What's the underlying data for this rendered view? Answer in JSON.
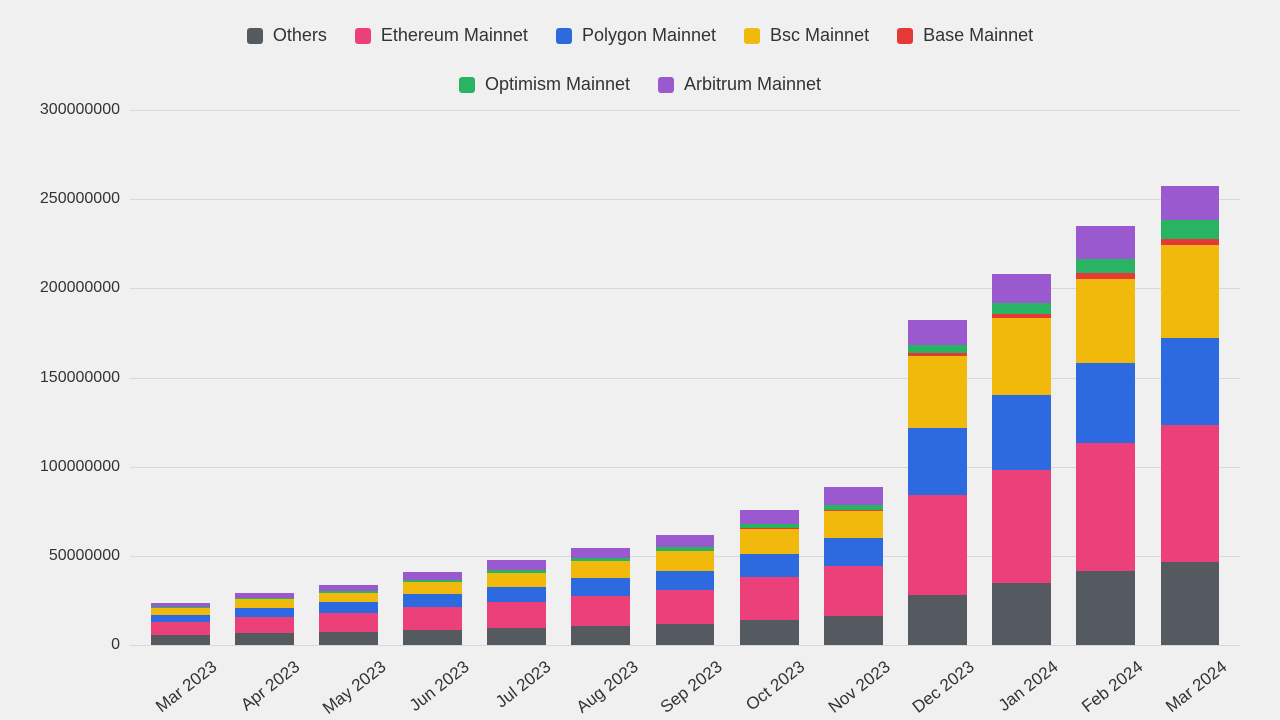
{
  "chart": {
    "type": "stacked-bar",
    "background_color": "#f0f0f0",
    "grid_color": "#d8d8d8",
    "text_color": "#333333",
    "font_size_axis": 16,
    "font_size_legend": 18,
    "ylim": [
      0,
      300000000
    ],
    "ytick_step": 50000000,
    "yticks": [
      "0",
      "50000000",
      "100000000",
      "150000000",
      "200000000",
      "250000000",
      "300000000"
    ],
    "bar_width_ratio": 0.7,
    "x_label_rotation_deg": -38,
    "categories": [
      "Mar 2023",
      "Apr 2023",
      "May 2023",
      "Jun 2023",
      "Jul 2023",
      "Aug 2023",
      "Sep 2023",
      "Oct 2023",
      "Nov 2023",
      "Dec 2023",
      "Jan 2024",
      "Feb 2024",
      "Mar 2024"
    ],
    "series": [
      {
        "key": "others",
        "label": "Others",
        "color": "#555960"
      },
      {
        "key": "ethereum",
        "label": "Ethereum Mainnet",
        "color": "#ec407a"
      },
      {
        "key": "polygon",
        "label": "Polygon Mainnet",
        "color": "#2d6ae0"
      },
      {
        "key": "bsc",
        "label": "Bsc Mainnet",
        "color": "#f0b90b"
      },
      {
        "key": "base",
        "label": "Base Mainnet",
        "color": "#e53935"
      },
      {
        "key": "optimism",
        "label": "Optimism Mainnet",
        "color": "#28b463"
      },
      {
        "key": "arbitrum",
        "label": "Arbitrum Mainnet",
        "color": "#9b59d0"
      }
    ],
    "legend_rows": [
      [
        "others",
        "ethereum",
        "polygon",
        "bsc",
        "base"
      ],
      [
        "optimism",
        "arbitrum"
      ]
    ],
    "data": {
      "others": [
        21000000,
        22000000,
        22500000,
        23000000,
        24000000,
        25000000,
        26000000,
        28000000,
        30000000,
        36000000,
        42000000,
        47000000,
        50000000
      ],
      "ethereum": [
        25000000,
        28000000,
        31000000,
        34000000,
        36000000,
        40000000,
        42000000,
        48000000,
        52000000,
        72000000,
        76000000,
        81000000,
        83000000
      ],
      "polygon": [
        14000000,
        17000000,
        18000000,
        20000000,
        22000000,
        23000000,
        24000000,
        25000000,
        28000000,
        48000000,
        50000000,
        51000000,
        53000000
      ],
      "bsc": [
        14000000,
        15000000,
        16000000,
        18000000,
        20000000,
        22000000,
        24000000,
        28000000,
        28000000,
        52000000,
        52000000,
        53000000,
        56000000
      ],
      "base": [
        0,
        0,
        0,
        0,
        0,
        0,
        500000,
        1000000,
        1500000,
        2000000,
        3000000,
        3500000,
        4000000
      ],
      "optimism": [
        2000000,
        2500000,
        3000000,
        3000000,
        3500000,
        4000000,
        4500000,
        5000000,
        5500000,
        6000000,
        7000000,
        9000000,
        11000000
      ],
      "arbitrum": [
        8000000,
        9000000,
        10000000,
        13000000,
        14000000,
        14000000,
        15000000,
        16000000,
        18000000,
        18000000,
        20000000,
        21000000,
        21000000
      ]
    }
  }
}
